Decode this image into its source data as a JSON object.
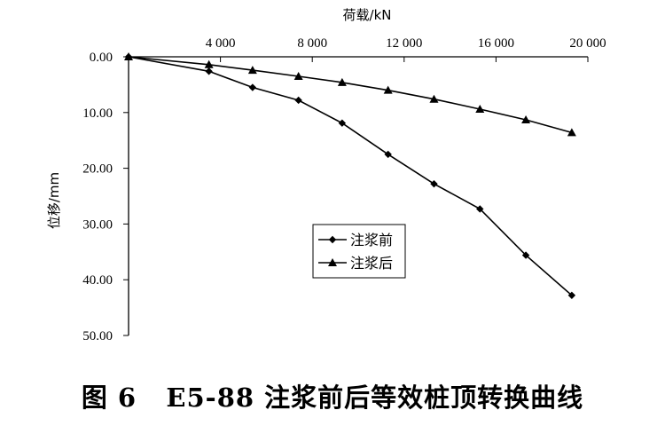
{
  "chart_data": {
    "type": "line",
    "xlabel": "荷载/kN",
    "ylabel": "位移/mm",
    "x_axis_position": "top",
    "y_axis_inverted": true,
    "xlim": [
      0,
      20000
    ],
    "ylim": [
      0,
      50
    ],
    "x_ticks": [
      4000,
      8000,
      12000,
      16000,
      20000
    ],
    "x_tick_labels": [
      "4 000",
      "8 000",
      "12 000",
      "16 000",
      "20 000"
    ],
    "y_ticks": [
      0,
      10,
      20,
      30,
      40,
      50
    ],
    "y_tick_labels": [
      "0.00",
      "10.00",
      "20.00",
      "30.00",
      "40.00",
      "50.00"
    ],
    "grid": false,
    "legend_position": "center",
    "series": [
      {
        "name": "注浆前",
        "marker": "diamond",
        "x": [
          0,
          3500,
          5400,
          7400,
          9300,
          11300,
          13300,
          15300,
          17300,
          19300
        ],
        "y": [
          0,
          2.6,
          5.5,
          7.8,
          11.9,
          17.5,
          22.8,
          27.3,
          35.6,
          42.8
        ]
      },
      {
        "name": "注浆后",
        "marker": "triangle",
        "x": [
          0,
          3500,
          5400,
          7400,
          9300,
          11300,
          13300,
          15300,
          17300,
          19300
        ],
        "y": [
          0,
          1.4,
          2.4,
          3.5,
          4.6,
          6.0,
          7.6,
          9.4,
          11.3,
          13.6
        ]
      }
    ]
  },
  "caption": {
    "figure_label": "图 6",
    "text": "E5-88 注浆前后等效桩顶转换曲线"
  }
}
